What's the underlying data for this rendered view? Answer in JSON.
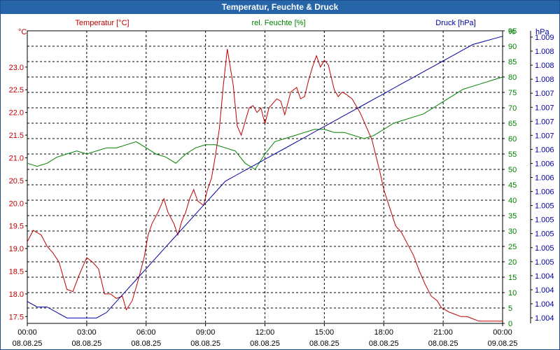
{
  "title": "Temperatur, Feuchte & Druck",
  "colors": {
    "temperature": "#c00000",
    "humidity": "#008000",
    "pressure": "#0000a0",
    "title_bg": "#2565a8",
    "grid": "#000000"
  },
  "chart_data": {
    "type": "line",
    "title": "Temperatur, Feuchte & Druck",
    "x_ticks": [
      {
        "hours": 0,
        "time": "00:00",
        "date": "08.08.25"
      },
      {
        "hours": 3,
        "time": "03:00",
        "date": "08.08.25"
      },
      {
        "hours": 6,
        "time": "06:00",
        "date": "08.08.25"
      },
      {
        "hours": 9,
        "time": "09:00",
        "date": "08.08.25"
      },
      {
        "hours": 12,
        "time": "12:00",
        "date": "08.08.25"
      },
      {
        "hours": 15,
        "time": "15:00",
        "date": "08.08.25"
      },
      {
        "hours": 18,
        "time": "18:00",
        "date": "08.08.25"
      },
      {
        "hours": 21,
        "time": "21:00",
        "date": "08.08.25"
      },
      {
        "hours": 24,
        "time": "00:00",
        "date": "09.08.25"
      }
    ],
    "xlim": [
      0,
      24
    ],
    "axes": {
      "temperature": {
        "unit": "°C",
        "legend": "Temperatur [°C]",
        "ylim": [
          17.35,
          23.8
        ],
        "ticks": [
          "17.5",
          "18.0",
          "18.5",
          "19.0",
          "19.5",
          "20.0",
          "20.5",
          "21.0",
          "21.5",
          "22.0",
          "22.5",
          "23.0"
        ]
      },
      "humidity": {
        "unit": "%",
        "legend": "rel. Feuchte [%]",
        "ylim": [
          0,
          95
        ],
        "ticks": [
          "0",
          "5",
          "10",
          "15",
          "20",
          "25",
          "30",
          "35",
          "40",
          "45",
          "50",
          "55",
          "60",
          "65",
          "70",
          "75",
          "80",
          "85",
          "90",
          "95"
        ]
      },
      "pressure": {
        "unit": "hPa",
        "legend": "Druck [hPa]",
        "ylim": [
          1003.9,
          1009.25
        ],
        "ticks": [
          "1.004",
          "1.004",
          "1.004",
          "1.004",
          "1.005",
          "1.005",
          "1.005",
          "1.005",
          "1.005",
          "1.006",
          "1.006",
          "1.006",
          "1.006",
          "1.007",
          "1.007",
          "1.007",
          "1.007",
          "1.008",
          "1.008",
          "1.008",
          "1.009"
        ]
      }
    },
    "series": [
      {
        "name": "Temperatur [°C]",
        "axis": "temperature",
        "x": [
          0,
          0.3,
          0.7,
          1.0,
          1.3,
          1.6,
          2.0,
          2.3,
          2.6,
          3.0,
          3.3,
          3.6,
          3.9,
          4.2,
          4.5,
          4.8,
          5.0,
          5.3,
          5.6,
          5.9,
          6.1,
          6.3,
          6.6,
          6.9,
          7.1,
          7.4,
          7.6,
          7.8,
          8.0,
          8.2,
          8.4,
          8.6,
          8.9,
          9.1,
          9.3,
          9.5,
          9.7,
          9.9,
          10.1,
          10.4,
          10.6,
          10.8,
          11.0,
          11.2,
          11.4,
          11.6,
          11.8,
          12.0,
          12.2,
          12.4,
          12.6,
          12.8,
          13.0,
          13.3,
          13.6,
          13.8,
          14.0,
          14.2,
          14.4,
          14.6,
          14.8,
          15.0,
          15.2,
          15.5,
          15.7,
          15.9,
          16.1,
          16.4,
          16.6,
          16.8,
          17.0,
          17.2,
          17.4,
          17.6,
          17.8,
          18.0,
          18.3,
          18.6,
          18.9,
          19.2,
          19.5,
          19.8,
          20.1,
          20.4,
          20.7,
          20.9,
          21.1,
          21.3,
          21.6,
          21.9,
          22.2,
          22.5,
          22.8,
          23.1,
          23.3,
          23.6,
          23.8,
          24.0
        ],
        "values": [
          19.15,
          19.4,
          19.3,
          19.05,
          18.9,
          18.7,
          18.1,
          18.05,
          18.4,
          18.8,
          18.7,
          18.55,
          18.0,
          18.0,
          17.9,
          17.95,
          17.65,
          17.85,
          18.3,
          18.8,
          19.3,
          19.55,
          19.8,
          20.1,
          19.8,
          19.55,
          19.3,
          19.6,
          19.8,
          20.1,
          20.3,
          20.05,
          19.95,
          20.3,
          20.55,
          21.05,
          21.65,
          22.6,
          23.4,
          22.6,
          21.7,
          21.5,
          21.8,
          22.1,
          22.15,
          22.0,
          22.1,
          21.75,
          22.1,
          22.2,
          22.3,
          22.25,
          21.95,
          22.45,
          22.55,
          22.3,
          22.35,
          22.7,
          23.0,
          23.25,
          23.0,
          23.15,
          23.05,
          22.5,
          22.35,
          22.45,
          22.4,
          22.3,
          22.15,
          22.0,
          21.8,
          21.6,
          21.4,
          21.05,
          20.7,
          20.3,
          19.9,
          19.5,
          19.35,
          19.1,
          18.85,
          18.5,
          18.2,
          17.95,
          17.85,
          17.7,
          17.65,
          17.6,
          17.55,
          17.5,
          17.5,
          17.45,
          17.4,
          17.4,
          17.4,
          17.4,
          17.4,
          17.4
        ]
      },
      {
        "name": "rel. Feuchte [%]",
        "axis": "humidity",
        "x": [
          0,
          0.5,
          1.0,
          1.5,
          2.0,
          2.5,
          3.0,
          3.5,
          4.0,
          4.5,
          5.0,
          5.5,
          6.0,
          6.5,
          7.0,
          7.5,
          8.0,
          8.5,
          9.0,
          9.5,
          10.0,
          10.5,
          11.0,
          11.5,
          12.0,
          12.5,
          13.0,
          13.5,
          14.0,
          14.5,
          15.0,
          15.5,
          16.0,
          16.5,
          17.0,
          17.5,
          18.0,
          18.5,
          19.0,
          19.5,
          20.0,
          20.5,
          21.0,
          21.5,
          22.0,
          22.5,
          23.0,
          23.5,
          24.0
        ],
        "values": [
          52,
          51,
          52,
          54,
          55,
          56,
          55,
          56,
          57,
          57,
          58,
          59,
          57,
          55,
          54,
          52,
          55,
          57,
          58,
          58,
          57,
          56,
          52,
          50,
          55,
          59,
          60,
          61,
          62,
          63,
          63,
          62,
          62,
          61,
          60,
          61,
          63,
          65,
          66,
          67,
          68,
          70,
          72,
          74,
          76,
          77,
          78,
          79,
          80
        ]
      },
      {
        "name": "Druck [hPa]",
        "axis": "pressure",
        "x": [
          0,
          0.5,
          1.0,
          1.5,
          2.0,
          2.5,
          3.0,
          3.5,
          4.0,
          4.5,
          5.0,
          5.5,
          6.0,
          6.5,
          7.0,
          7.5,
          8.0,
          8.5,
          9.0,
          9.5,
          10.0,
          10.5,
          11.0,
          11.5,
          12.0,
          12.5,
          13.0,
          13.5,
          14.0,
          14.5,
          15.0,
          15.5,
          16.0,
          16.5,
          17.0,
          17.5,
          18.0,
          18.5,
          19.0,
          19.5,
          20.0,
          20.5,
          21.0,
          21.5,
          22.0,
          22.5,
          23.0,
          23.5,
          24.0
        ],
        "values": [
          1004.3,
          1004.2,
          1004.2,
          1004.1,
          1004.0,
          1004.0,
          1004.0,
          1004.0,
          1004.1,
          1004.3,
          1004.5,
          1004.7,
          1004.9,
          1005.1,
          1005.3,
          1005.5,
          1005.7,
          1005.9,
          1006.1,
          1006.3,
          1006.5,
          1006.6,
          1006.7,
          1006.8,
          1006.9,
          1007.0,
          1007.1,
          1007.2,
          1007.3,
          1007.4,
          1007.5,
          1007.6,
          1007.7,
          1007.8,
          1007.9,
          1008.0,
          1008.1,
          1008.2,
          1008.3,
          1008.4,
          1008.5,
          1008.6,
          1008.7,
          1008.8,
          1008.9,
          1009.0,
          1009.05,
          1009.1,
          1009.15
        ]
      }
    ]
  }
}
